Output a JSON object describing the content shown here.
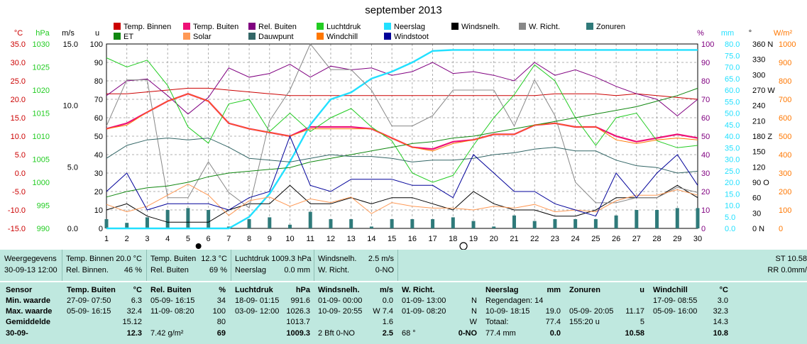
{
  "title": "september 2013",
  "colors": {
    "temp_binnen": "#cc0000",
    "temp_buiten": "#ee1177",
    "rel_buiten": "#800080",
    "luchtdruk": "#22cc22",
    "neerslag": "#22e0ff",
    "windsnelh": "#000000",
    "w_richt": "#888888",
    "zonuren": "#2f7a7a",
    "et": "#118811",
    "solar": "#ff9955",
    "dauwpunt": "#336666",
    "windchill": "#ff7700",
    "windstoot": "#000099",
    "panel_bg": "#bfe8df"
  },
  "legend": [
    {
      "label": "Temp. Binnen",
      "color": "#cc0000"
    },
    {
      "label": "Temp. Buiten",
      "color": "#ee1177"
    },
    {
      "label": "Rel. Buiten",
      "color": "#800080"
    },
    {
      "label": "Luchtdruk",
      "color": "#22cc22"
    },
    {
      "label": "Neerslag",
      "color": "#22e0ff"
    },
    {
      "label": "Windsnelh.",
      "color": "#000000"
    },
    {
      "label": "W. Richt.",
      "color": "#888888"
    },
    {
      "label": "Zonuren",
      "color": "#2f7a7a"
    },
    {
      "label": "ET",
      "color": "#118811"
    },
    {
      "label": "Solar",
      "color": "#ff9955"
    },
    {
      "label": "Dauwpunt",
      "color": "#336666"
    },
    {
      "label": "Windchill",
      "color": "#ff7700"
    },
    {
      "label": "Windstoot",
      "color": "#000099"
    }
  ],
  "chart_data": {
    "type": "line",
    "title": "september 2013",
    "x": [
      1,
      2,
      3,
      4,
      5,
      6,
      7,
      8,
      9,
      10,
      11,
      12,
      13,
      14,
      15,
      16,
      17,
      18,
      19,
      20,
      21,
      22,
      23,
      24,
      25,
      26,
      27,
      28,
      29,
      30
    ],
    "axis_units": {
      "temp": "°C",
      "pressure": "hPa",
      "wind": "m/s",
      "zon": "u",
      "humidity": "%",
      "rain": "mm",
      "direction": "°",
      "solar": "W/m²"
    },
    "axes": {
      "temp": {
        "ticks": [
          "35.0",
          "30.0",
          "25.0",
          "20.0",
          "15.0",
          "10.0",
          "5.0",
          "0.0",
          "-5.0",
          "-10.0",
          "-15.0"
        ],
        "ylim": [
          -15,
          35
        ]
      },
      "pressure": {
        "ticks": [
          "1030",
          "1025",
          "1020",
          "1015",
          "1010",
          "1005",
          "1000",
          "995",
          "990"
        ],
        "ylim": [
          990,
          1030
        ]
      },
      "wind": {
        "ticks": [
          "15.0",
          "10.0",
          "5.0",
          "0.0"
        ],
        "ylim": [
          0,
          15
        ]
      },
      "zon": {
        "ticks": [
          "100",
          "90",
          "80",
          "70",
          "60",
          "50",
          "40",
          "30",
          "20",
          "10",
          "0"
        ],
        "ylim": [
          0,
          100
        ]
      },
      "humidity": {
        "ticks": [
          "100",
          "90",
          "80",
          "70",
          "60",
          "50",
          "40",
          "30",
          "20",
          "10",
          "0"
        ],
        "ylim": [
          0,
          100
        ]
      },
      "rain": {
        "ticks": [
          "80.0",
          "75.0",
          "70.0",
          "65.0",
          "60.0",
          "55.0",
          "50.0",
          "45.0",
          "40.0",
          "35.0",
          "30.0",
          "25.0",
          "20.0",
          "15.0",
          "10.0",
          "5.0",
          "0.0"
        ],
        "ylim": [
          0,
          80
        ]
      },
      "direction": {
        "ticks": [
          "360 N",
          "330",
          "300",
          "270 W",
          "240",
          "210",
          "180 Z",
          "150",
          "120",
          "90 O",
          "60",
          "30",
          "0 N"
        ],
        "ylim": [
          0,
          360
        ]
      },
      "solar": {
        "ticks": [
          "1000",
          "900",
          "800",
          "700",
          "600",
          "500",
          "400",
          "300",
          "200",
          "100",
          "0"
        ],
        "ylim": [
          0,
          1000
        ]
      }
    },
    "series": [
      {
        "name": "Temp. Binnen",
        "axis": "temp",
        "values": [
          21.5,
          21.5,
          22,
          22.5,
          23,
          23,
          22.5,
          22,
          21.5,
          21,
          21,
          21,
          21,
          21,
          21,
          21,
          21,
          21,
          21,
          21,
          21,
          21,
          21.5,
          21.5,
          21.5,
          21,
          21.5,
          21,
          20.5,
          20
        ]
      },
      {
        "name": "Temp. Buiten",
        "axis": "temp",
        "values": [
          12,
          13.5,
          16.5,
          19.5,
          21.5,
          19.5,
          13.5,
          12,
          11,
          10,
          12.5,
          12.5,
          12.5,
          12,
          9.5,
          7,
          6.5,
          8.5,
          9,
          10.5,
          10.5,
          13,
          13.5,
          12.5,
          12.5,
          10,
          8.5,
          9.5,
          10.5,
          9.5
        ]
      },
      {
        "name": "Rel. Buiten",
        "axis": "humidity",
        "values": [
          72,
          80,
          81,
          72,
          62,
          71,
          87,
          82,
          84,
          89,
          82,
          88,
          86,
          87,
          83,
          85,
          90,
          84,
          85,
          83,
          80,
          90,
          83,
          86,
          82,
          77,
          73,
          70,
          61,
          70
        ]
      },
      {
        "name": "Luchtdruk",
        "axis": "pressure",
        "values": [
          1027,
          1025,
          1026.5,
          1021,
          1012,
          1008.5,
          1017,
          1018,
          1011,
          1015,
          1011,
          1014,
          1016,
          1012,
          1009,
          1002,
          1000,
          1001.5,
          1008,
          1014,
          1019,
          1025.5,
          1022,
          1014,
          1008,
          1014,
          1015,
          1009,
          1007.5,
          1008
        ]
      },
      {
        "name": "Neerslag",
        "axis": "rain",
        "values": [
          0,
          0,
          0,
          0,
          0,
          0,
          0,
          5,
          15,
          29,
          45,
          56,
          59,
          65,
          68,
          72,
          77,
          77.4,
          77.4,
          77.4,
          77.4,
          77.4,
          77.4,
          77.4,
          77.4,
          77.4,
          77.4,
          77.4,
          77.4,
          77.4
        ]
      },
      {
        "name": "Windsnelh.",
        "axis": "wind",
        "values": [
          1.5,
          2,
          1,
          0.5,
          0.5,
          0.5,
          1.5,
          2,
          2,
          3.5,
          2,
          2,
          2.5,
          2,
          2.5,
          2.5,
          2,
          1.5,
          3,
          2,
          1.5,
          1.5,
          1,
          1,
          1.5,
          2.5,
          2.5,
          2.5,
          3.5,
          2.5
        ]
      },
      {
        "name": "W. Richt.",
        "axis": "direction",
        "values": [
          200,
          290,
          290,
          60,
          60,
          130,
          70,
          40,
          210,
          270,
          360,
          310,
          310,
          270,
          200,
          200,
          220,
          270,
          270,
          270,
          200,
          290,
          220,
          90,
          50,
          50,
          60,
          60,
          80,
          70
        ]
      },
      {
        "name": "Zonuren",
        "axis": "zon",
        "values": [
          5,
          3,
          6,
          10,
          11,
          10,
          1,
          5,
          6,
          2,
          9,
          5,
          5,
          1,
          5,
          5,
          5,
          6,
          4,
          1,
          7,
          4,
          5,
          5,
          5,
          7,
          10,
          10,
          11,
          11
        ]
      },
      {
        "name": "ET",
        "axis": "zon",
        "values": [
          17,
          20,
          22,
          23,
          25,
          28,
          30,
          31,
          32,
          33,
          36,
          38,
          40,
          42,
          44,
          46,
          47,
          49,
          50,
          52,
          54,
          56,
          58,
          60,
          62,
          64,
          66,
          69,
          72,
          76
        ]
      },
      {
        "name": "Solar",
        "axis": "solar",
        "values": [
          130,
          90,
          120,
          180,
          240,
          180,
          70,
          150,
          170,
          120,
          160,
          140,
          170,
          80,
          140,
          120,
          110,
          110,
          100,
          120,
          110,
          130,
          90,
          100,
          90,
          150,
          180,
          180,
          210,
          180
        ]
      },
      {
        "name": "Dauwpunt",
        "axis": "temp",
        "values": [
          4,
          7.5,
          9,
          9.5,
          9,
          9.5,
          7,
          4,
          3.5,
          3,
          4,
          5,
          4.5,
          4.5,
          4,
          3,
          3.5,
          3.5,
          4,
          5,
          5.5,
          6.5,
          7,
          6,
          6,
          3.5,
          2,
          1.5,
          0,
          0.5
        ]
      },
      {
        "name": "Windchill",
        "axis": "temp",
        "values": [
          12,
          13,
          16.5,
          19.5,
          21.5,
          19.5,
          13.5,
          12,
          11,
          10,
          12,
          12,
          12,
          12,
          9.5,
          7,
          6,
          8,
          9,
          10.5,
          10.5,
          13,
          13.5,
          12.5,
          12.5,
          9,
          8,
          9,
          9.5,
          9
        ]
      },
      {
        "name": "Windstoot",
        "axis": "wind",
        "values": [
          3,
          4.5,
          1.5,
          2,
          2,
          2,
          1.5,
          2.5,
          3,
          7.5,
          3.5,
          3,
          4,
          4,
          4,
          3.5,
          3.5,
          2.5,
          6,
          4.5,
          3,
          3,
          2,
          1.5,
          1,
          4.5,
          2.5,
          4.5,
          6,
          3.5
        ]
      }
    ]
  },
  "day_markers": {
    "new_moon_day": "6",
    "full_moon_day": "19"
  },
  "status": {
    "weergegevens": "Weergegevens",
    "datetime": "30-09-13 12:00",
    "temp_binnen_label": "Temp. Binnen",
    "temp_binnen_value": "20.0 °C",
    "rel_binnen_label": "Rel. Binnen.",
    "rel_binnen_value": "46 %",
    "temp_buiten_label": "Temp. Buiten",
    "temp_buiten_value": "12.3 °C",
    "rel_buiten_label": "Rel. Buiten",
    "rel_buiten_value": "69 %",
    "luchtdruk": "Luchtdruk 1009.3 hPa",
    "neerslag_label": "Neerslag",
    "neerslag_value": "0.0 mm",
    "windsnelh_label": "Windsnelh.",
    "windsnelh_value": "2.5 m/s",
    "wrich_label": "W. Richt.",
    "wrich_value": "0-NO",
    "st": "ST 10.58",
    "rr": "RR 0.0mm/"
  },
  "stats": {
    "row_labels": [
      "Sensor",
      "Min. waarde",
      "Max. waarde",
      "Gemiddelde",
      "30-09-"
    ],
    "columns": [
      {
        "title": "Temp. Buiten",
        "unit": "°C",
        "rows": [
          [
            "27-09- 07:50",
            "6.3"
          ],
          [
            "05-09- 16:15",
            "32.4"
          ],
          [
            "",
            "15.12"
          ],
          [
            "",
            "12.3"
          ]
        ]
      },
      {
        "title": "Rel. Buiten",
        "unit": "%",
        "rows": [
          [
            "05-09- 16:15",
            "34"
          ],
          [
            "11-09- 08:20",
            "100"
          ],
          [
            "",
            "80"
          ],
          [
            "7.42 g/m²",
            "69"
          ]
        ]
      },
      {
        "title": "Luchtdruk",
        "unit": "hPa",
        "rows": [
          [
            "18-09- 01:15",
            "991.6"
          ],
          [
            "03-09- 12:00",
            "1026.3"
          ],
          [
            "",
            "1013.7"
          ],
          [
            "",
            "1009.3"
          ]
        ]
      },
      {
        "title": "Windsnelh.",
        "unit": "m/s",
        "rows": [
          [
            "01-09- 00:00",
            "0.0"
          ],
          [
            "10-09- 20:55",
            "W 7.4"
          ],
          [
            "",
            "1.6"
          ],
          [
            "2 Bft 0-NO",
            "2.5"
          ]
        ]
      },
      {
        "title": "W. Richt.",
        "unit": "",
        "rows": [
          [
            "01-09- 13:00",
            "N"
          ],
          [
            "01-09- 08:20",
            "N"
          ],
          [
            "",
            "W"
          ],
          [
            "68 °",
            "0-NO"
          ]
        ]
      },
      {
        "title": "Neerslag",
        "unit": "mm",
        "rows": [
          [
            "Regendagen: 14",
            ""
          ],
          [
            "10-09- 18:15",
            "19.0"
          ],
          [
            "Totaal:",
            "77.4"
          ],
          [
            "77.4 mm",
            "0.0"
          ]
        ]
      },
      {
        "title": "Zonuren",
        "unit": "u",
        "rows": [
          [
            "",
            ""
          ],
          [
            "05-09- 20:05",
            "11.17"
          ],
          [
            "155:20 u",
            "5"
          ],
          [
            "",
            "10.58"
          ]
        ]
      },
      {
        "title": "Windchill",
        "unit": "°C",
        "rows": [
          [
            "17-09- 08:55",
            "3.0"
          ],
          [
            "05-09- 16:00",
            "32.3"
          ],
          [
            "",
            "14.3"
          ],
          [
            "",
            "10.8"
          ]
        ]
      }
    ]
  }
}
